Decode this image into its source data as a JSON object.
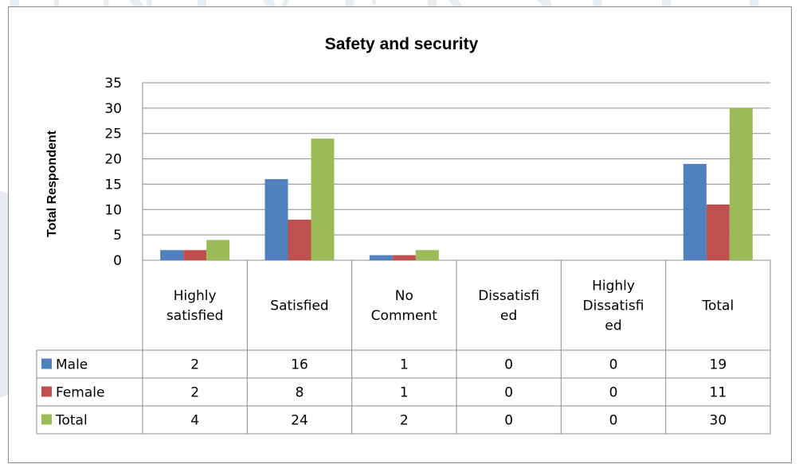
{
  "chart_data": {
    "type": "bar",
    "title": "Safety and security",
    "ylabel": "Total Respondent",
    "xlabel": "",
    "ylim": [
      0,
      35
    ],
    "yticks": [
      0,
      5,
      10,
      15,
      20,
      25,
      30,
      35
    ],
    "grid": true,
    "categories": [
      [
        "Highly",
        "satisfied"
      ],
      [
        "Satisfied"
      ],
      [
        "No",
        "Comment"
      ],
      [
        "Dissatisfi",
        "ed"
      ],
      [
        "Highly",
        "Dissatisfi",
        "ed"
      ],
      [
        "Total"
      ]
    ],
    "series": [
      {
        "name": "Male",
        "color": "#4f81bd",
        "values": [
          2,
          16,
          1,
          0,
          0,
          19
        ]
      },
      {
        "name": "Female",
        "color": "#c0504d",
        "values": [
          2,
          8,
          1,
          0,
          0,
          11
        ]
      },
      {
        "name": "Total",
        "color": "#9bbb59",
        "values": [
          4,
          24,
          2,
          0,
          0,
          30
        ]
      }
    ],
    "legend": "data-table"
  },
  "watermark": {
    "text": "UNIVERSITY",
    "color": "#e8edf2"
  }
}
